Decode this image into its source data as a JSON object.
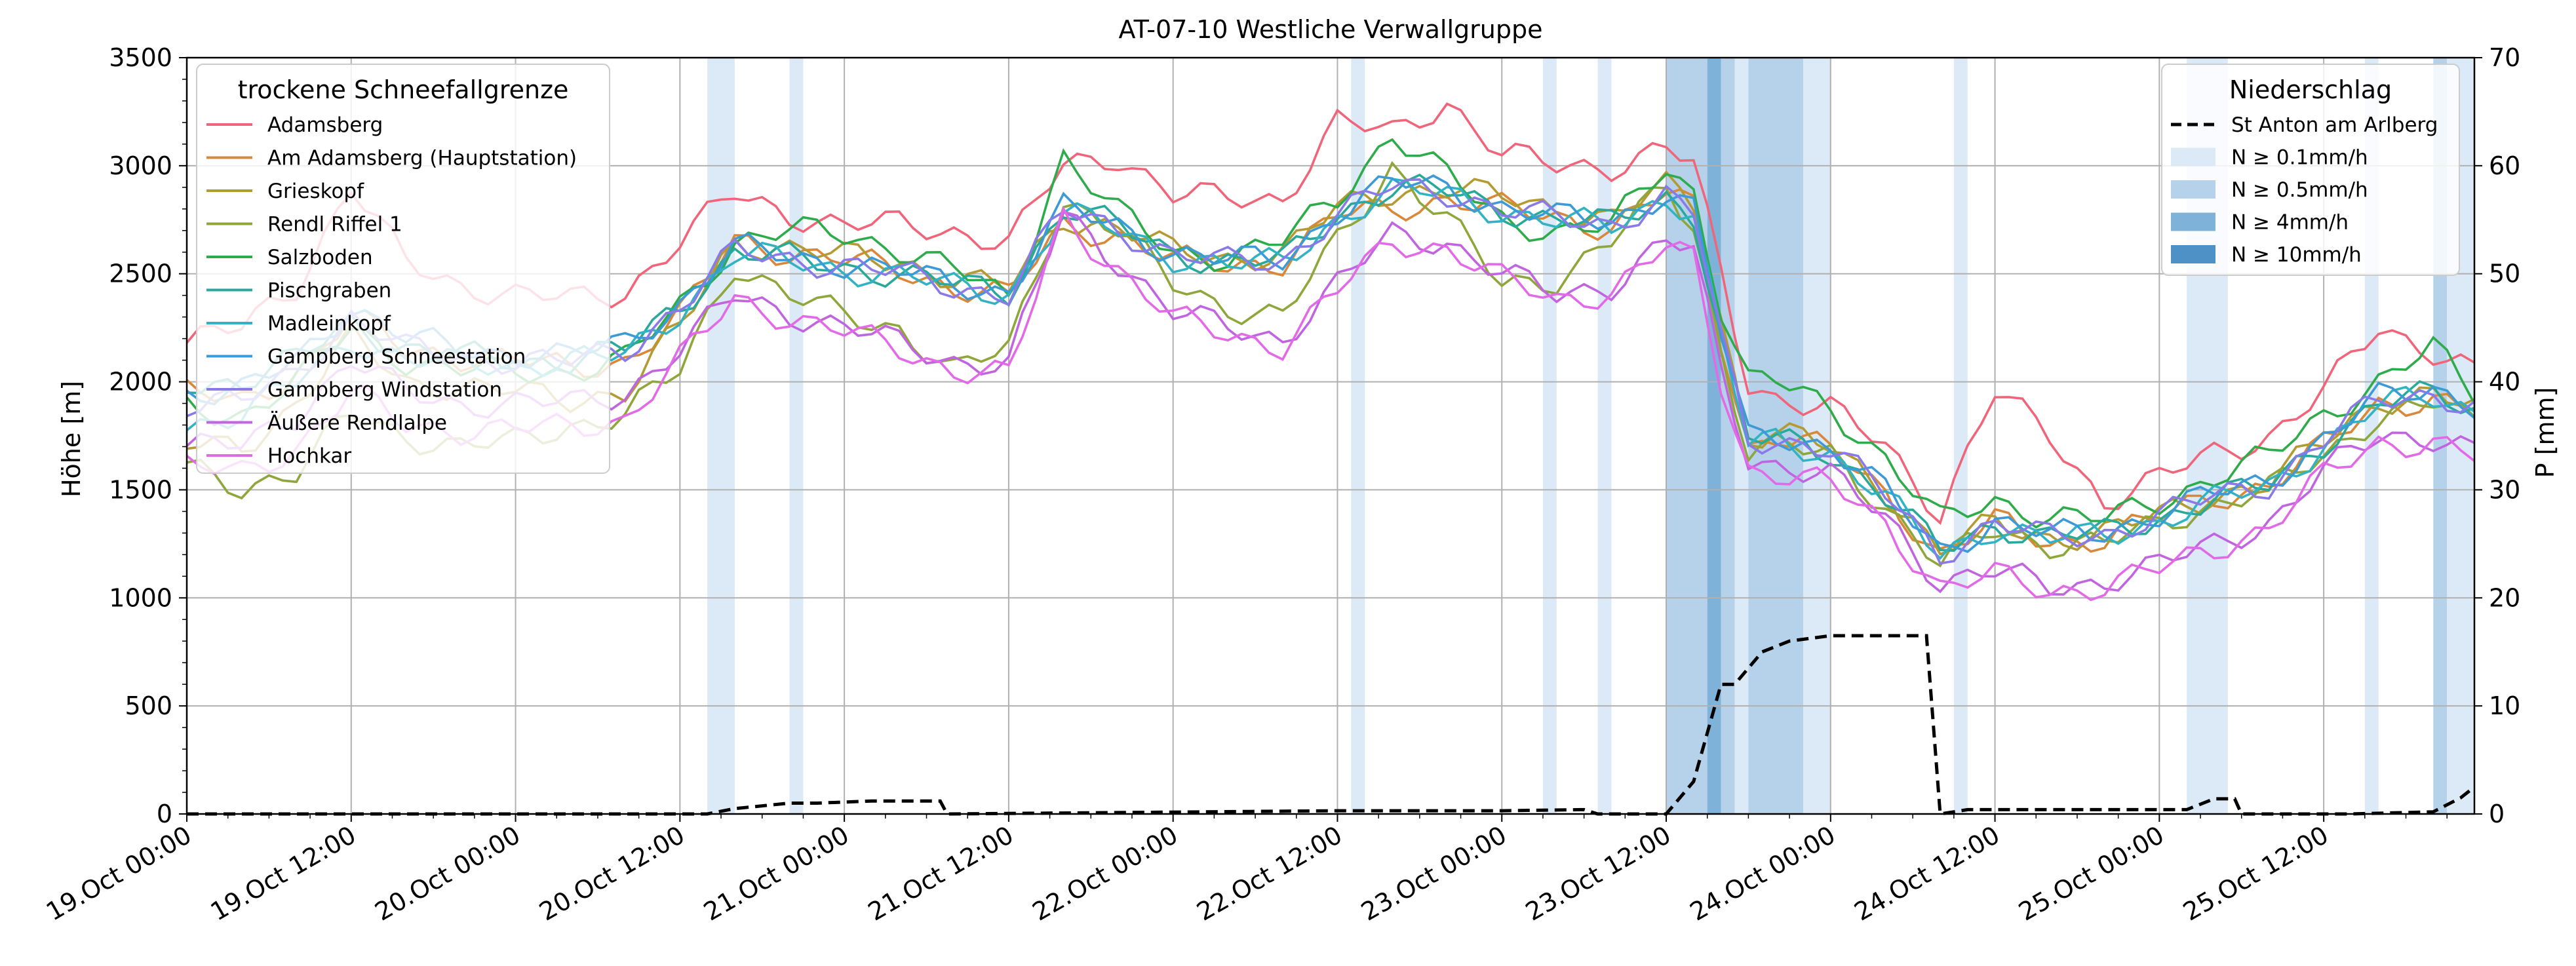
{
  "chart_data": {
    "type": "line",
    "title": "AT-07-10 Westliche Verwallgruppe",
    "xlabel": "",
    "ylabel": "Höhe [m]",
    "y2label": "P [mm]",
    "ylim": [
      0,
      3500
    ],
    "y2lim": [
      0,
      70
    ],
    "xlim_hours": [
      0,
      167
    ],
    "grid": true,
    "yticks": [
      "0",
      "500",
      "1000",
      "1500",
      "2000",
      "2500",
      "3000",
      "3500"
    ],
    "y2ticks": [
      "0",
      "10",
      "20",
      "30",
      "40",
      "50",
      "60",
      "70"
    ],
    "xticks": [
      {
        "h": 0,
        "label": "19.Oct 00:00"
      },
      {
        "h": 12,
        "label": "19.Oct 12:00"
      },
      {
        "h": 24,
        "label": "20.Oct 00:00"
      },
      {
        "h": 36,
        "label": "20.Oct 12:00"
      },
      {
        "h": 48,
        "label": "21.Oct 00:00"
      },
      {
        "h": 60,
        "label": "21.Oct 12:00"
      },
      {
        "h": 72,
        "label": "22.Oct 00:00"
      },
      {
        "h": 84,
        "label": "22.Oct 12:00"
      },
      {
        "h": 96,
        "label": "23.Oct 00:00"
      },
      {
        "h": 108,
        "label": "23.Oct 12:00"
      },
      {
        "h": 120,
        "label": "24.Oct 00:00"
      },
      {
        "h": 132,
        "label": "24.Oct 12:00"
      },
      {
        "h": 144,
        "label": "25.Oct 00:00"
      },
      {
        "h": 156,
        "label": "25.Oct 12:00"
      }
    ],
    "legend_left": {
      "title": "trockene Schneefallgrenze",
      "placement": "top-left"
    },
    "legend_right": {
      "title": "Niederschlag",
      "placement": "top-right",
      "entries": [
        {
          "label": "St Anton am Arlberg",
          "style": "dashed",
          "color": "#000000"
        },
        {
          "label": "N ≥ 0.1mm/h",
          "color": "#dce9f6"
        },
        {
          "label": "N ≥ 0.5mm/h",
          "color": "#b6d2ea"
        },
        {
          "label": "N ≥ 4mm/h",
          "color": "#7fb2d8"
        },
        {
          "label": "N ≥ 10mm/h",
          "color": "#4d91c6"
        }
      ]
    },
    "series_keypoints_h": [
      0,
      4,
      8,
      12,
      16,
      20,
      24,
      28,
      32,
      36,
      40,
      44,
      48,
      52,
      56,
      60,
      64,
      68,
      72,
      76,
      80,
      84,
      88,
      92,
      96,
      100,
      104,
      108,
      110,
      112,
      114,
      116,
      120,
      124,
      128,
      132,
      136,
      140,
      144,
      148,
      152,
      156,
      160,
      164,
      167
    ],
    "series": [
      {
        "name": "Adamsberg",
        "color": "#f0657a",
        "values": [
          2180,
          2250,
          2450,
          2900,
          2550,
          2450,
          2400,
          2380,
          2420,
          2650,
          2870,
          2780,
          2720,
          2730,
          2700,
          2640,
          3000,
          3050,
          2860,
          2850,
          2850,
          3200,
          3150,
          3300,
          3050,
          3000,
          3000,
          3080,
          3000,
          2500,
          2000,
          1930,
          1870,
          1700,
          1400,
          1950,
          1750,
          1450,
          1550,
          1670,
          1750,
          1950,
          2250,
          2150,
          2050
        ]
      },
      {
        "name": "Am Adamsberg (Hauptstation)",
        "color": "#d9883a",
        "values": [
          1950,
          1900,
          2050,
          2300,
          2150,
          2120,
          2100,
          2060,
          2100,
          2300,
          2660,
          2600,
          2560,
          2520,
          2440,
          2400,
          2720,
          2680,
          2560,
          2540,
          2560,
          2770,
          2800,
          2850,
          2800,
          2760,
          2720,
          2870,
          2800,
          2200,
          1700,
          1760,
          1680,
          1480,
          1200,
          1350,
          1260,
          1280,
          1370,
          1470,
          1520,
          1700,
          1900,
          1920,
          1850
        ]
      },
      {
        "name": "Grieskopf",
        "color": "#b39a33",
        "values": [
          1700,
          1700,
          1900,
          2200,
          2000,
          1980,
          1950,
          1920,
          1960,
          2250,
          2650,
          2620,
          2580,
          2560,
          2480,
          2430,
          2760,
          2720,
          2600,
          2570,
          2600,
          2800,
          2880,
          2900,
          2850,
          2800,
          2760,
          2900,
          2830,
          2300,
          1740,
          1770,
          1690,
          1500,
          1220,
          1340,
          1280,
          1300,
          1380,
          1480,
          1530,
          1720,
          1920,
          1940,
          1870
        ]
      },
      {
        "name": "Rendl Riffel 1",
        "color": "#8ea63a",
        "values": [
          1600,
          1520,
          1580,
          1850,
          1750,
          1700,
          1720,
          1800,
          1850,
          2050,
          2550,
          2400,
          2300,
          2250,
          2050,
          2150,
          2850,
          2700,
          2450,
          2350,
          2300,
          2650,
          3000,
          2750,
          2450,
          2480,
          2650,
          2900,
          2720,
          2150,
          1680,
          1700,
          1660,
          1430,
          1150,
          1320,
          1250,
          1250,
          1340,
          1440,
          1500,
          1650,
          1850,
          1900,
          1800
        ]
      },
      {
        "name": "Salzboden",
        "color": "#2eab4a",
        "values": [
          1880,
          1850,
          2000,
          2250,
          2100,
          2050,
          2050,
          2050,
          2100,
          2350,
          2650,
          2700,
          2680,
          2620,
          2520,
          2380,
          3050,
          2780,
          2600,
          2580,
          2650,
          2850,
          3150,
          2950,
          2750,
          2700,
          2720,
          3000,
          2880,
          2350,
          2000,
          2000,
          1880,
          1650,
          1350,
          1450,
          1380,
          1360,
          1450,
          1560,
          1650,
          1850,
          2000,
          2150,
          1950
        ]
      },
      {
        "name": "Pischgraben",
        "color": "#2aa89a",
        "values": [
          2000,
          2000,
          2100,
          2280,
          2150,
          2120,
          2100,
          2100,
          2150,
          2350,
          2600,
          2570,
          2530,
          2500,
          2450,
          2420,
          2800,
          2720,
          2600,
          2550,
          2560,
          2780,
          2900,
          2880,
          2800,
          2750,
          2730,
          2860,
          2780,
          2200,
          1720,
          1740,
          1680,
          1470,
          1220,
          1340,
          1280,
          1300,
          1370,
          1460,
          1520,
          1720,
          1900,
          1940,
          1880
        ]
      },
      {
        "name": "Madleinkopf",
        "color": "#32b3c4",
        "values": [
          1800,
          1850,
          2000,
          2200,
          2100,
          2080,
          2080,
          2100,
          2120,
          2330,
          2590,
          2560,
          2520,
          2490,
          2440,
          2410,
          2780,
          2700,
          2580,
          2540,
          2550,
          2760,
          2880,
          2870,
          2790,
          2740,
          2720,
          2860,
          2780,
          2200,
          1710,
          1730,
          1670,
          1460,
          1200,
          1330,
          1270,
          1290,
          1360,
          1450,
          1510,
          1710,
          1890,
          1930,
          1870
        ]
      },
      {
        "name": "Gampberg Schneestation",
        "color": "#3c9ad6",
        "values": [
          1950,
          1950,
          2100,
          2350,
          2200,
          2150,
          2130,
          2120,
          2180,
          2360,
          2620,
          2580,
          2550,
          2510,
          2450,
          2420,
          2800,
          2720,
          2600,
          2560,
          2570,
          2790,
          2920,
          2900,
          2810,
          2760,
          2740,
          2880,
          2800,
          2220,
          1740,
          1760,
          1700,
          1490,
          1220,
          1350,
          1290,
          1310,
          1390,
          1480,
          1540,
          1740,
          1920,
          1970,
          1900
        ]
      },
      {
        "name": "Gampberg Windstation",
        "color": "#8a7ae8",
        "values": [
          1900,
          1900,
          2050,
          2300,
          2150,
          2120,
          2100,
          2090,
          2150,
          2350,
          2600,
          2570,
          2540,
          2500,
          2440,
          2410,
          2790,
          2710,
          2590,
          2550,
          2560,
          2780,
          2900,
          2880,
          2800,
          2750,
          2730,
          2860,
          2780,
          2200,
          1720,
          1740,
          1690,
          1480,
          1210,
          1340,
          1280,
          1300,
          1380,
          1470,
          1530,
          1730,
          1910,
          1950,
          1890
        ]
      },
      {
        "name": "Äußere Rendlalpe",
        "color": "#c064e0",
        "values": [
          1700,
          1700,
          1850,
          2100,
          1950,
          1900,
          1900,
          1900,
          1950,
          2150,
          2400,
          2320,
          2250,
          2180,
          2100,
          2080,
          2780,
          2560,
          2320,
          2250,
          2200,
          2450,
          2680,
          2650,
          2500,
          2400,
          2450,
          2650,
          2600,
          2050,
          1650,
          1620,
          1560,
          1370,
          1080,
          1120,
          1050,
          1080,
          1150,
          1250,
          1350,
          1580,
          1750,
          1750,
          1680
        ]
      },
      {
        "name": "Hochkar",
        "color": "#e36ae6",
        "values": [
          1600,
          1580,
          1700,
          1950,
          1800,
          1780,
          1780,
          1790,
          1830,
          2100,
          2380,
          2300,
          2230,
          2150,
          2060,
          2030,
          2760,
          2520,
          2290,
          2220,
          2170,
          2420,
          2650,
          2620,
          2470,
          2380,
          2420,
          2620,
          2560,
          2000,
          1600,
          1580,
          1520,
          1340,
          1050,
          1100,
          1030,
          1060,
          1130,
          1230,
          1330,
          1560,
          1720,
          1720,
          1650
        ]
      }
    ],
    "precip_series": {
      "name": "St Anton am Arlberg",
      "unit": "mm",
      "points": [
        [
          0,
          0
        ],
        [
          38,
          0
        ],
        [
          40,
          0.5
        ],
        [
          44,
          1.0
        ],
        [
          46,
          1.0
        ],
        [
          50,
          1.2
        ],
        [
          55,
          1.2
        ],
        [
          55.5,
          0
        ],
        [
          84,
          0.3
        ],
        [
          96,
          0.3
        ],
        [
          102,
          0.4
        ],
        [
          103,
          0
        ],
        [
          108,
          0
        ],
        [
          110,
          3
        ],
        [
          112,
          12
        ],
        [
          113,
          12
        ],
        [
          115,
          15
        ],
        [
          117,
          16
        ],
        [
          120,
          16.5
        ],
        [
          127,
          16.5
        ],
        [
          128,
          0
        ],
        [
          130,
          0.4
        ],
        [
          146,
          0.4
        ],
        [
          148,
          1.4
        ],
        [
          149.5,
          1.4
        ],
        [
          150,
          0
        ],
        [
          158,
          0
        ],
        [
          164,
          0.2
        ],
        [
          166,
          1.5
        ],
        [
          167,
          2.5
        ]
      ]
    },
    "precip_bands": [
      {
        "start": 38,
        "end": 40,
        "level": 1
      },
      {
        "start": 44,
        "end": 45,
        "level": 1
      },
      {
        "start": 85,
        "end": 86,
        "level": 1
      },
      {
        "start": 99,
        "end": 100,
        "level": 1
      },
      {
        "start": 103,
        "end": 104,
        "level": 1
      },
      {
        "start": 108,
        "end": 111,
        "level": 2
      },
      {
        "start": 111,
        "end": 112,
        "level": 3
      },
      {
        "start": 112,
        "end": 113,
        "level": 2
      },
      {
        "start": 113,
        "end": 114,
        "level": 1
      },
      {
        "start": 114,
        "end": 118,
        "level": 2
      },
      {
        "start": 118,
        "end": 120,
        "level": 1
      },
      {
        "start": 129,
        "end": 130,
        "level": 1
      },
      {
        "start": 146,
        "end": 149,
        "level": 1
      },
      {
        "start": 159,
        "end": 160,
        "level": 1
      },
      {
        "start": 164,
        "end": 165,
        "level": 2
      },
      {
        "start": 165,
        "end": 167,
        "level": 1
      }
    ]
  }
}
